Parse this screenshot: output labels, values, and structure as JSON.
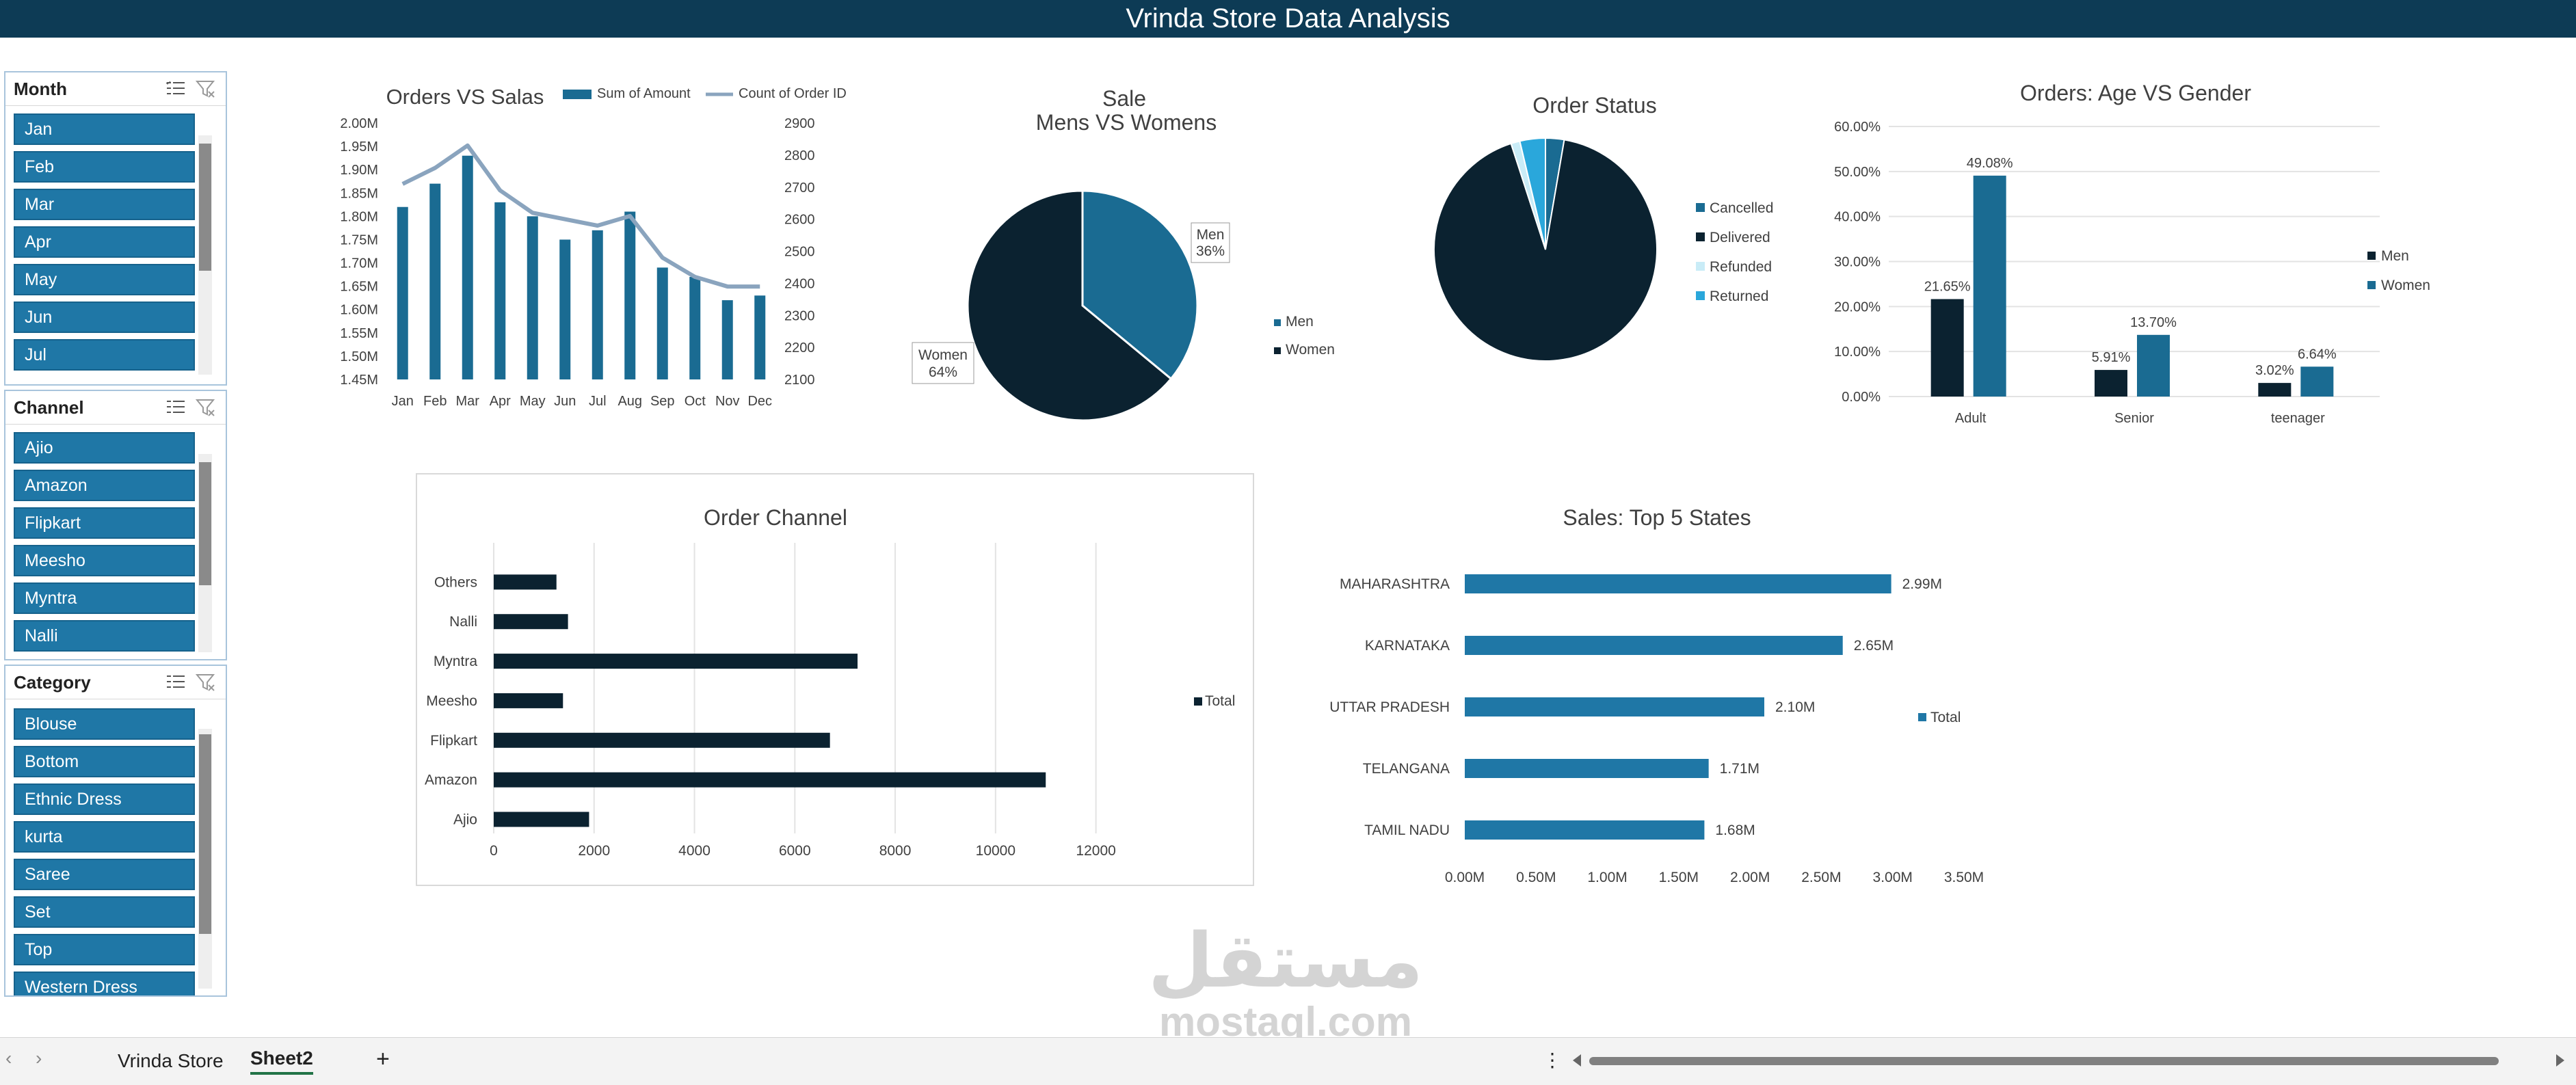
{
  "header": {
    "title": "Vrinda Store Data Analysis"
  },
  "slicers": [
    {
      "title": "Month",
      "items": [
        "Jan",
        "Feb",
        "Mar",
        "Apr",
        "May",
        "Jun",
        "Jul"
      ]
    },
    {
      "title": "Channel",
      "items": [
        "Ajio",
        "Amazon",
        "Flipkart",
        "Meesho",
        "Myntra",
        "Nalli"
      ]
    },
    {
      "title": "Category",
      "items": [
        "Blouse",
        "Bottom",
        "Ethnic Dress",
        "kurta",
        "Saree",
        "Set",
        "Top",
        "Western Dress"
      ]
    }
  ],
  "chart_data": [
    {
      "id": "orders-vs-sales",
      "type": "bar",
      "title": "Orders VS Salas",
      "categories": [
        "Jan",
        "Feb",
        "Mar",
        "Apr",
        "May",
        "Jun",
        "Jul",
        "Aug",
        "Sep",
        "Oct",
        "Nov",
        "Dec"
      ],
      "series": [
        {
          "name": "Sum of Amount",
          "type": "bar",
          "axis": "left",
          "values": [
            1.82,
            1.87,
            1.93,
            1.83,
            1.8,
            1.75,
            1.77,
            1.81,
            1.69,
            1.67,
            1.62,
            1.63
          ]
        },
        {
          "name": "Count of Order ID",
          "type": "line",
          "axis": "right",
          "values": [
            2710,
            2760,
            2830,
            2690,
            2620,
            2600,
            2580,
            2610,
            2480,
            2420,
            2390,
            2390
          ]
        }
      ],
      "y_left": {
        "min": 1.45,
        "max": 2.0,
        "ticks": [
          "1.45M",
          "1.50M",
          "1.55M",
          "1.60M",
          "1.65M",
          "1.70M",
          "1.75M",
          "1.80M",
          "1.85M",
          "1.90M",
          "1.95M",
          "2.00M"
        ]
      },
      "y_right": {
        "min": 2100,
        "max": 2900,
        "ticks": [
          "2100",
          "2200",
          "2300",
          "2400",
          "2500",
          "2600",
          "2700",
          "2800",
          "2900"
        ]
      },
      "legend": "top",
      "colors": {
        "bar": "#1a6b92",
        "line": "#8aa4be"
      }
    },
    {
      "id": "sale-men-women",
      "type": "pie",
      "title": "Sale",
      "subtitle": "Mens VS Womens",
      "slices": [
        {
          "name": "Men",
          "value": 36,
          "label": "36%"
        },
        {
          "name": "Women",
          "value": 64,
          "label": "64%"
        }
      ],
      "legend": "right",
      "colors": [
        "#1a6b92",
        "#0b2230"
      ]
    },
    {
      "id": "order-status",
      "type": "pie",
      "title": "Order Status",
      "slices": [
        {
          "name": "Cancelled",
          "value": 2.7
        },
        {
          "name": "Delivered",
          "value": 92.3
        },
        {
          "name": "Refunded",
          "value": 1.3
        },
        {
          "name": "Returned",
          "value": 3.7
        }
      ],
      "legend": "right",
      "colors": [
        "#1a6b92",
        "#0b2230",
        "#c9ecf7",
        "#2aa7db"
      ]
    },
    {
      "id": "age-vs-gender",
      "type": "bar",
      "title": "Orders: Age VS Gender",
      "categories": [
        "Adult",
        "Senior",
        "teenager"
      ],
      "series": [
        {
          "name": "Men",
          "values": [
            21.65,
            5.91,
            3.02
          ],
          "labels": [
            "21.65%",
            "5.91%",
            "3.02%"
          ]
        },
        {
          "name": "Women",
          "values": [
            49.08,
            13.7,
            6.64
          ],
          "labels": [
            "49.08%",
            "13.70%",
            "6.64%"
          ]
        }
      ],
      "ylim": [
        0,
        60
      ],
      "y_ticks": [
        "0.00%",
        "10.00%",
        "20.00%",
        "30.00%",
        "40.00%",
        "50.00%",
        "60.00%"
      ],
      "legend": "right",
      "colors": [
        "#0b2230",
        "#1a6b92"
      ]
    },
    {
      "id": "order-channel",
      "type": "bar",
      "orientation": "horizontal",
      "title": "Order Channel",
      "categories": [
        "Others",
        "Nalli",
        "Myntra",
        "Meesho",
        "Flipkart",
        "Amazon",
        "Ajio"
      ],
      "series": [
        {
          "name": "Total",
          "values": [
            1250,
            1480,
            7250,
            1380,
            6700,
            11000,
            1900
          ]
        }
      ],
      "xlim": [
        0,
        12000
      ],
      "x_ticks": [
        "0",
        "2000",
        "4000",
        "6000",
        "8000",
        "10000",
        "12000"
      ],
      "legend": "right",
      "colors": [
        "#0b2230"
      ]
    },
    {
      "id": "top-states",
      "type": "bar",
      "orientation": "horizontal",
      "title": "Sales: Top 5 States",
      "categories": [
        "MAHARASHTRA",
        "KARNATAKA",
        "UTTAR PRADESH",
        "TELANGANA",
        "TAMIL NADU"
      ],
      "series": [
        {
          "name": "Total",
          "values": [
            2.99,
            2.65,
            2.1,
            1.71,
            1.68
          ],
          "labels": [
            "2.99M",
            "2.65M",
            "2.10M",
            "1.71M",
            "1.68M"
          ]
        }
      ],
      "xlim": [
        0,
        3.5
      ],
      "x_ticks": [
        "0.00M",
        "0.50M",
        "1.00M",
        "1.50M",
        "2.00M",
        "2.50M",
        "3.00M",
        "3.50M"
      ],
      "legend": "right",
      "colors": [
        "#1f77a6"
      ]
    }
  ],
  "sheet_tabs": {
    "sheet1": "Vrinda Store",
    "sheet2": "Sheet2",
    "add": "+",
    "prev": "‹",
    "next": "›",
    "more": "⋮"
  },
  "watermark": {
    "logo": "مستقل",
    "text": "mostaql.com"
  }
}
